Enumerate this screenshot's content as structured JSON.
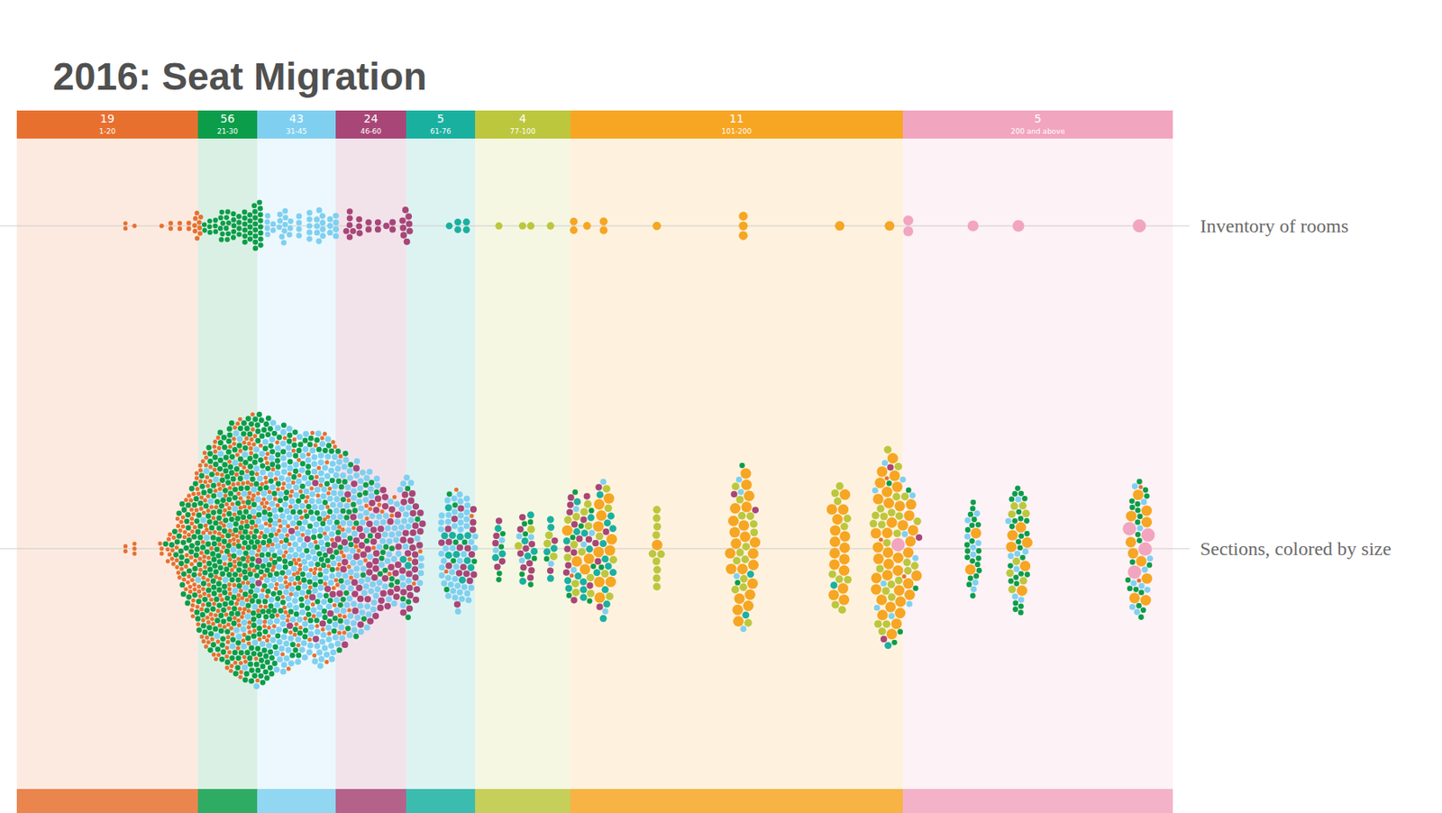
{
  "chart_data": {
    "type": "beeswarm",
    "title": "2016: Seat Migration",
    "row_labels": [
      "Inventory of rooms",
      "Sections, colored by size"
    ],
    "bands": [
      {
        "label": "1-20",
        "count": 19,
        "lo": 0,
        "hi": 20,
        "color": "#e8702f"
      },
      {
        "label": "21-30",
        "count": 56,
        "lo": 20,
        "hi": 30,
        "color": "#0b9d49"
      },
      {
        "label": "31-45",
        "count": 43,
        "lo": 30,
        "hi": 45,
        "color": "#7fd0f0"
      },
      {
        "label": "46-60",
        "count": 24,
        "lo": 45,
        "hi": 60,
        "color": "#a84677"
      },
      {
        "label": "61-76",
        "count": 5,
        "lo": 60,
        "hi": 76,
        "color": "#1ab0a0"
      },
      {
        "label": "77-100",
        "count": 4,
        "lo": 76,
        "hi": 100,
        "color": "#bcc73d"
      },
      {
        "label": "101-200",
        "count": 11,
        "lo": 100,
        "hi": 200,
        "color": "#f6a623"
      },
      {
        "label": "200 and above",
        "count": 5,
        "lo": 200,
        "hi": 450,
        "color": "#f2a5bf"
      }
    ],
    "rooms": [
      {
        "capacity": 12,
        "count": 2,
        "sections": [
          2,
          0,
          0,
          0,
          0,
          0,
          0,
          0
        ]
      },
      {
        "capacity": 13,
        "count": 1,
        "sections": [
          3,
          0,
          0,
          0,
          0,
          0,
          0,
          0
        ]
      },
      {
        "capacity": 16,
        "count": 1,
        "sections": [
          3,
          0,
          0,
          0,
          0,
          0,
          0,
          0
        ]
      },
      {
        "capacity": 17,
        "count": 2,
        "sections": [
          4,
          1,
          0,
          0,
          0,
          0,
          0,
          0
        ]
      },
      {
        "capacity": 18,
        "count": 2,
        "sections": [
          5,
          1,
          0,
          0,
          0,
          0,
          0,
          0
        ]
      },
      {
        "capacity": 19,
        "count": 2,
        "sections": [
          6,
          2,
          0,
          0,
          0,
          0,
          0,
          0
        ]
      },
      {
        "capacity": 20,
        "count": 9,
        "sections": [
          10,
          14,
          0,
          0,
          0,
          0,
          0,
          0
        ]
      },
      {
        "capacity": 21,
        "count": 2,
        "sections": [
          8,
          4,
          0,
          0,
          0,
          0,
          0,
          0
        ]
      },
      {
        "capacity": 22,
        "count": 3,
        "sections": [
          10,
          6,
          0,
          0,
          0,
          0,
          0,
          0
        ]
      },
      {
        "capacity": 23,
        "count": 3,
        "sections": [
          12,
          8,
          0,
          0,
          0,
          0,
          0,
          0
        ]
      },
      {
        "capacity": 24,
        "count": 6,
        "sections": [
          30,
          25,
          2,
          0,
          0,
          0,
          0,
          0
        ]
      },
      {
        "capacity": 25,
        "count": 6,
        "sections": [
          35,
          35,
          3,
          0,
          0,
          0,
          0,
          0
        ]
      },
      {
        "capacity": 26,
        "count": 5,
        "sections": [
          30,
          30,
          4,
          0,
          0,
          0,
          0,
          0
        ]
      },
      {
        "capacity": 27,
        "count": 4,
        "sections": [
          25,
          30,
          5,
          0,
          0,
          0,
          0,
          0
        ]
      },
      {
        "capacity": 28,
        "count": 6,
        "sections": [
          35,
          40,
          8,
          0,
          0,
          0,
          0,
          0
        ]
      },
      {
        "capacity": 29,
        "count": 5,
        "sections": [
          30,
          35,
          8,
          0,
          0,
          0,
          0,
          0
        ]
      },
      {
        "capacity": 30,
        "count": 16,
        "sections": [
          60,
          90,
          25,
          2,
          0,
          0,
          0,
          0
        ]
      },
      {
        "capacity": 32,
        "count": 4,
        "sections": [
          20,
          20,
          25,
          0,
          0,
          0,
          0,
          0
        ]
      },
      {
        "capacity": 33,
        "count": 2,
        "sections": [
          10,
          10,
          12,
          0,
          0,
          0,
          0,
          0
        ]
      },
      {
        "capacity": 35,
        "count": 9,
        "sections": [
          30,
          30,
          50,
          2,
          0,
          0,
          0,
          0
        ]
      },
      {
        "capacity": 36,
        "count": 3,
        "sections": [
          10,
          10,
          15,
          0,
          0,
          0,
          0,
          0
        ]
      },
      {
        "capacity": 38,
        "count": 4,
        "sections": [
          12,
          15,
          25,
          1,
          0,
          0,
          0,
          0
        ]
      },
      {
        "capacity": 40,
        "count": 5,
        "sections": [
          15,
          20,
          30,
          3,
          0,
          0,
          0,
          0
        ]
      },
      {
        "capacity": 42,
        "count": 9,
        "sections": [
          25,
          30,
          55,
          6,
          0,
          0,
          0,
          0
        ]
      },
      {
        "capacity": 44,
        "count": 3,
        "sections": [
          6,
          8,
          15,
          3,
          0,
          0,
          0,
          0
        ]
      },
      {
        "capacity": 45,
        "count": 4,
        "sections": [
          8,
          10,
          20,
          4,
          0,
          0,
          0,
          0
        ]
      },
      {
        "capacity": 48,
        "count": 6,
        "sections": [
          5,
          8,
          30,
          15,
          0,
          0,
          0,
          0
        ]
      },
      {
        "capacity": 50,
        "count": 3,
        "sections": [
          3,
          5,
          15,
          10,
          0,
          0,
          0,
          0
        ]
      },
      {
        "capacity": 52,
        "count": 2,
        "sections": [
          2,
          3,
          10,
          8,
          0,
          0,
          0,
          0
        ]
      },
      {
        "capacity": 54,
        "count": 2,
        "sections": [
          2,
          3,
          8,
          8,
          0,
          0,
          0,
          0
        ]
      },
      {
        "capacity": 56,
        "count": 1,
        "sections": [
          1,
          2,
          5,
          4,
          0,
          0,
          0,
          0
        ]
      },
      {
        "capacity": 57,
        "count": 2,
        "sections": [
          1,
          2,
          8,
          6,
          0,
          0,
          0,
          0
        ]
      },
      {
        "capacity": 60,
        "count": 8,
        "sections": [
          3,
          5,
          20,
          30,
          2,
          0,
          0,
          0
        ]
      },
      {
        "capacity": 70,
        "count": 1,
        "sections": [
          1,
          2,
          15,
          4,
          3,
          0,
          0,
          0
        ]
      },
      {
        "capacity": 72,
        "count": 2,
        "sections": [
          1,
          3,
          20,
          6,
          4,
          0,
          0,
          0
        ]
      },
      {
        "capacity": 74,
        "count": 2,
        "sections": [
          1,
          2,
          12,
          8,
          3,
          0,
          0,
          0
        ]
      },
      {
        "capacity": 82,
        "count": 1,
        "sections": [
          0,
          4,
          2,
          5,
          3,
          0,
          0,
          0
        ]
      },
      {
        "capacity": 88,
        "count": 1,
        "sections": [
          0,
          3,
          2,
          5,
          2,
          1,
          0,
          0
        ]
      },
      {
        "capacity": 90,
        "count": 1,
        "sections": [
          0,
          3,
          1,
          4,
          3,
          1,
          0,
          0
        ]
      },
      {
        "capacity": 95,
        "count": 1,
        "sections": [
          0,
          1,
          1,
          2,
          5,
          3,
          0,
          0
        ]
      },
      {
        "capacity": 101,
        "count": 2,
        "sections": [
          1,
          3,
          2,
          10,
          6,
          6,
          2,
          0
        ]
      },
      {
        "capacity": 105,
        "count": 1,
        "sections": [
          0,
          4,
          2,
          4,
          6,
          6,
          2,
          0
        ]
      },
      {
        "capacity": 110,
        "count": 2,
        "sections": [
          0,
          1,
          2,
          5,
          12,
          6,
          10,
          0
        ]
      },
      {
        "capacity": 126,
        "count": 1,
        "sections": [
          0,
          0,
          0,
          0,
          0,
          10,
          1,
          0
        ]
      },
      {
        "capacity": 152,
        "count": 3,
        "sections": [
          0,
          2,
          4,
          2,
          2,
          14,
          22,
          0
        ]
      },
      {
        "capacity": 181,
        "count": 1,
        "sections": [
          0,
          0,
          0,
          0,
          1,
          10,
          15,
          0
        ]
      },
      {
        "capacity": 196,
        "count": 1,
        "sections": [
          2,
          3,
          6,
          2,
          1,
          20,
          30,
          1
        ]
      },
      {
        "capacity": 205,
        "count": 2,
        "sections": [
          1,
          2,
          4,
          1,
          0,
          5,
          8,
          0
        ]
      },
      {
        "capacity": 265,
        "count": 1,
        "sections": [
          0,
          20,
          8,
          0,
          0,
          0,
          2,
          0
        ]
      },
      {
        "capacity": 307,
        "count": 1,
        "sections": [
          0,
          25,
          8,
          0,
          0,
          8,
          6,
          0
        ]
      },
      {
        "capacity": 419,
        "count": 1,
        "sections": [
          2,
          20,
          10,
          0,
          0,
          0,
          10,
          4
        ]
      }
    ]
  }
}
